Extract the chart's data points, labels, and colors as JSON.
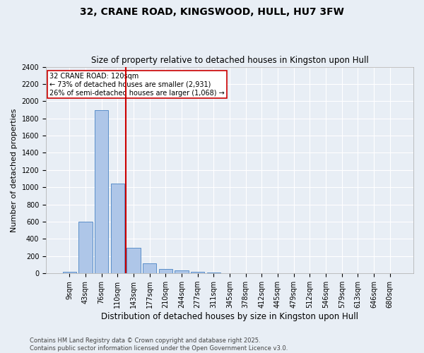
{
  "title": "32, CRANE ROAD, KINGSWOOD, HULL, HU7 3FW",
  "subtitle": "Size of property relative to detached houses in Kingston upon Hull",
  "xlabel": "Distribution of detached houses by size in Kingston upon Hull",
  "ylabel": "Number of detached properties",
  "categories": [
    "9sqm",
    "43sqm",
    "76sqm",
    "110sqm",
    "143sqm",
    "177sqm",
    "210sqm",
    "244sqm",
    "277sqm",
    "311sqm",
    "345sqm",
    "378sqm",
    "412sqm",
    "445sqm",
    "479sqm",
    "512sqm",
    "546sqm",
    "579sqm",
    "613sqm",
    "646sqm",
    "680sqm"
  ],
  "values": [
    20,
    600,
    1900,
    1040,
    295,
    120,
    50,
    38,
    22,
    12,
    0,
    0,
    0,
    0,
    0,
    0,
    0,
    0,
    0,
    0,
    0
  ],
  "bar_color": "#aec6e8",
  "bar_edge_color": "#5b8fc9",
  "vline_color": "#cc0000",
  "annotation_text": "32 CRANE ROAD: 120sqm\n← 73% of detached houses are smaller (2,931)\n26% of semi-detached houses are larger (1,068) →",
  "annotation_box_color": "#ffffff",
  "annotation_box_edge": "#cc0000",
  "ylim": [
    0,
    2400
  ],
  "yticks": [
    0,
    200,
    400,
    600,
    800,
    1000,
    1200,
    1400,
    1600,
    1800,
    2000,
    2200,
    2400
  ],
  "background_color": "#e8eef5",
  "plot_bg_color": "#e8eef5",
  "grid_color": "#ffffff",
  "title_fontsize": 10,
  "subtitle_fontsize": 8.5,
  "ylabel_fontsize": 8,
  "xlabel_fontsize": 8.5,
  "tick_fontsize": 7,
  "annotation_fontsize": 7,
  "footer_fontsize": 6,
  "footer": "Contains HM Land Registry data © Crown copyright and database right 2025.\nContains public sector information licensed under the Open Government Licence v3.0."
}
